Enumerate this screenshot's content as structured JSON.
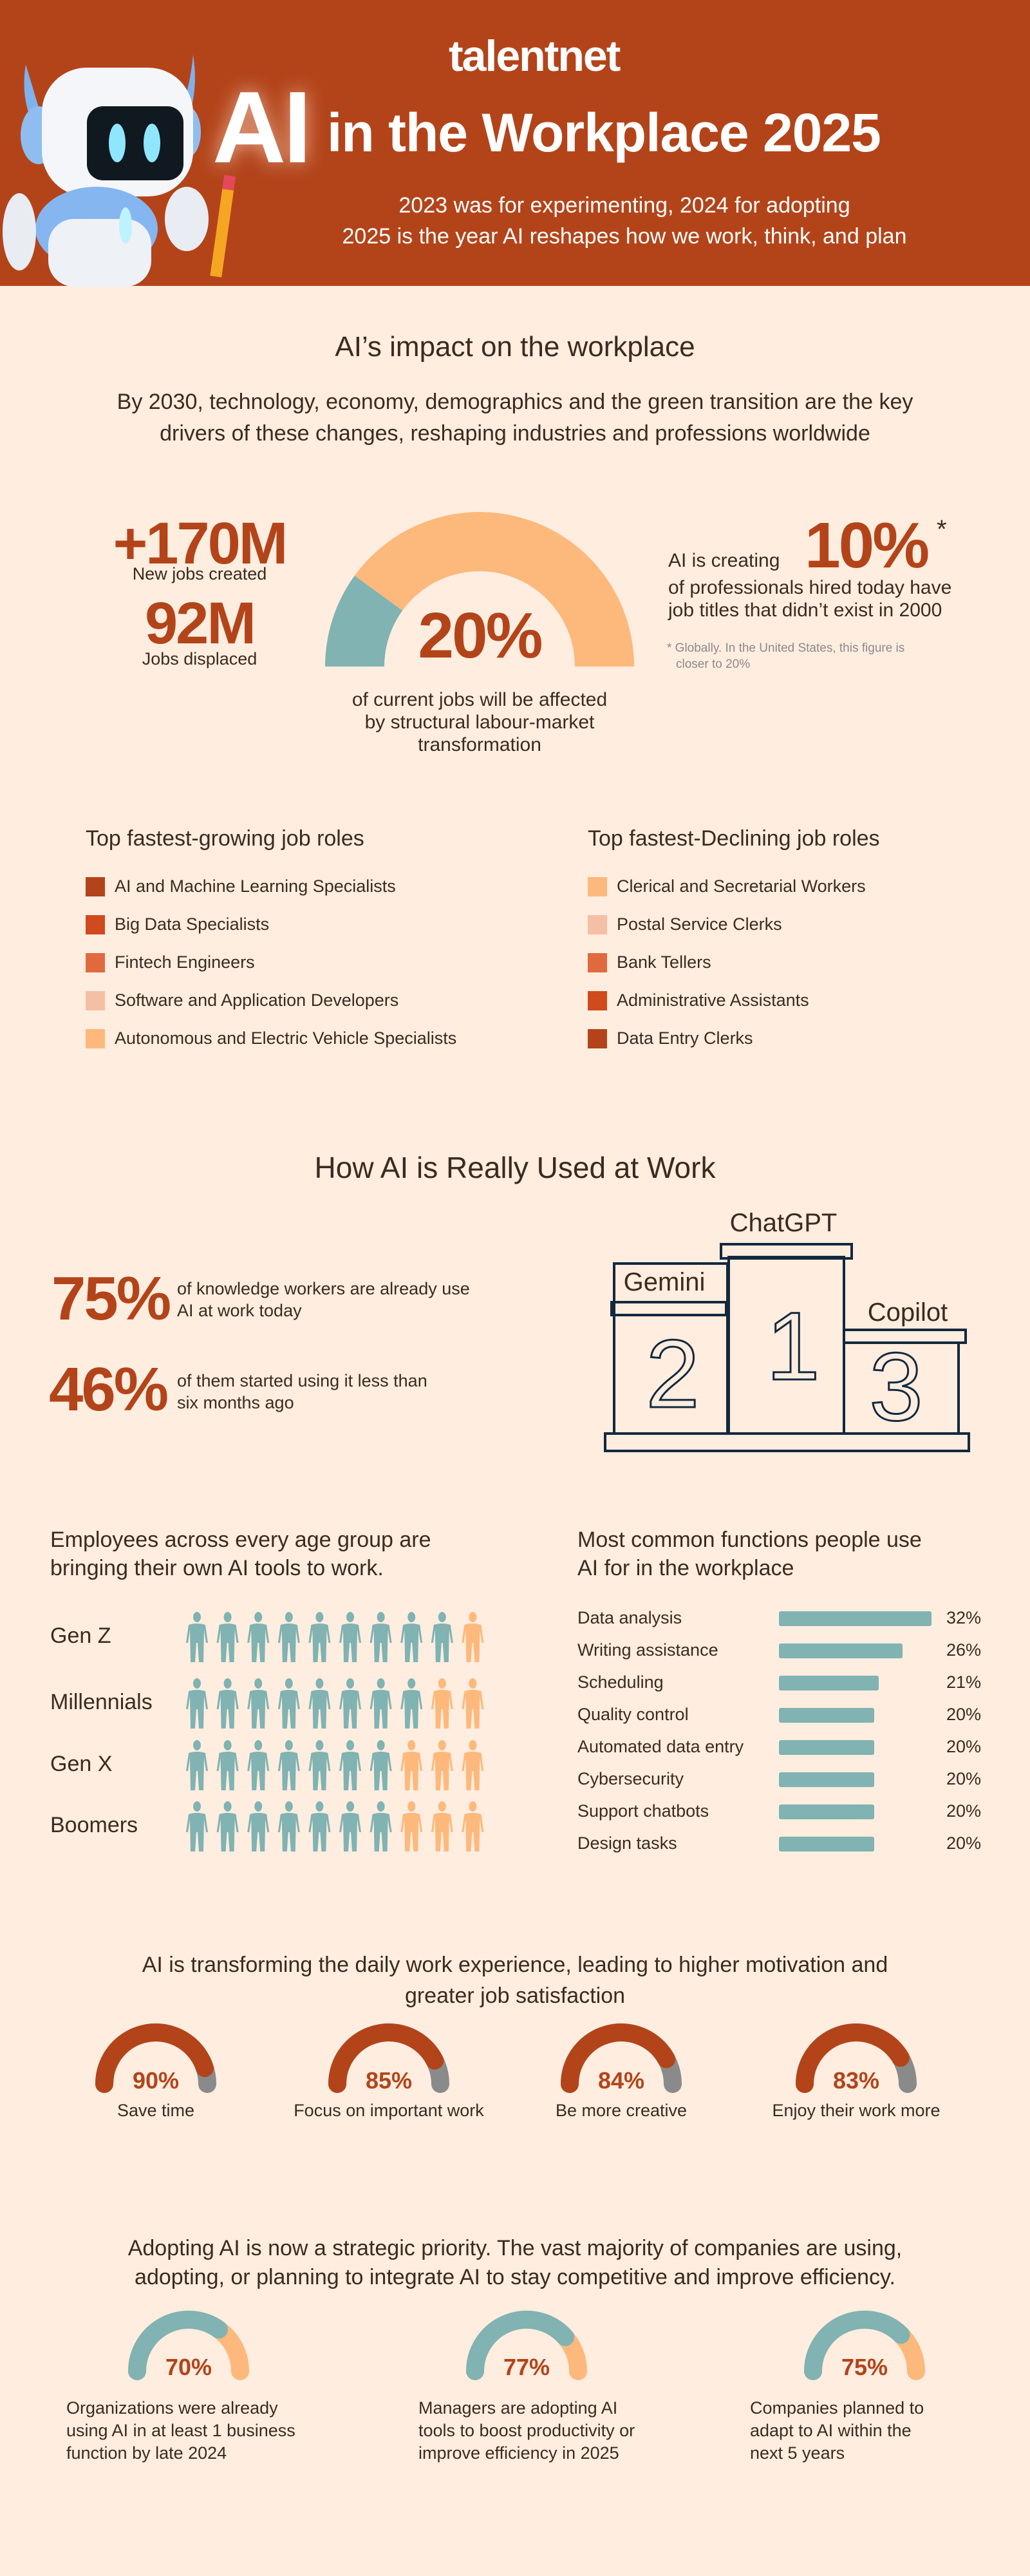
{
  "colors": {
    "header": "#b3441a",
    "background": "#ffede0",
    "accent": "#b3441a",
    "teal": "#80b3b2",
    "peach": "#fdb97b",
    "grey": "#8a8a8a",
    "podium": "#13293d"
  },
  "header": {
    "logo": "talentnet",
    "title_ai": "AI",
    "title_rest": "in the Workplace 2025",
    "subtitle_lines": [
      "2023 was for experimenting, 2024 for adopting",
      "2025 is the year AI reshapes how we work, think, and plan"
    ],
    "robot_icon": "robot-with-pencil"
  },
  "impact": {
    "heading": "AI’s impact on the workplace",
    "intro_lines": [
      "By 2030, technology, economy, demographics and the green transition  are the key",
      "drivers of these changes, reshaping industries and professions worldwide"
    ],
    "new_jobs": {
      "value": "+170M",
      "label": "New jobs created"
    },
    "displaced": {
      "value": "92M",
      "label": "Jobs displaced"
    },
    "affected": {
      "value": "20%",
      "percent": 20,
      "lines": [
        "of current jobs will be affected",
        "by structural labour-market",
        "transformation"
      ]
    },
    "new_titles": {
      "prefix": "AI is creating",
      "value": "10%",
      "asterisk": "*",
      "lines": [
        "of professionals hired today have",
        "job titles that didn’t exist in 2000"
      ],
      "footnote_lines": [
        "* Globally. In the United States, this figure is",
        "closer to 20%"
      ]
    }
  },
  "roles": {
    "growing": {
      "heading": "Top fastest-growing job roles",
      "items": [
        {
          "label": "AI and Machine Learning Specialists",
          "color": "#b3441a"
        },
        {
          "label": "Big Data Specialists",
          "color": "#cf4a1c"
        },
        {
          "label": "Fintech Engineers",
          "color": "#e06a3e"
        },
        {
          "label": "Software and Application Developers",
          "color": "#f5bfa6"
        },
        {
          "label": "Autonomous and Electric Vehicle Specialists",
          "color": "#fdb97b"
        }
      ]
    },
    "declining": {
      "heading": "Top fastest-Declining job roles",
      "items": [
        {
          "label": "Clerical and Secretarial Workers",
          "color": "#fdb97b"
        },
        {
          "label": "Postal Service Clerks",
          "color": "#f5bfa6"
        },
        {
          "label": "Bank Tellers",
          "color": "#e06a3e"
        },
        {
          "label": "Administrative Assistants",
          "color": "#cf4a1c"
        },
        {
          "label": "Data Entry Clerks",
          "color": "#b3441a"
        }
      ]
    }
  },
  "usage": {
    "heading": "How AI is Really Used at Work",
    "stat1": {
      "value": "75%",
      "lines": [
        "of knowledge workers are already use",
        "AI at work today"
      ]
    },
    "stat2": {
      "value": "46%",
      "lines": [
        "of them started using it less than",
        "six months ago"
      ]
    },
    "podium": {
      "first": {
        "name": "ChatGPT",
        "rank": "1"
      },
      "second": {
        "name": "Gemini",
        "rank": "2"
      },
      "third": {
        "name": "Copilot",
        "rank": "3"
      }
    }
  },
  "age_groups": {
    "heading_lines": [
      "Employees across every age group are",
      "bringing their own AI tools to work."
    ],
    "rows": [
      {
        "label": "Gen Z",
        "highlighted": 9,
        "total": 10
      },
      {
        "label": "Millennials",
        "highlighted": 8,
        "total": 10
      },
      {
        "label": "Gen X",
        "highlighted": 7,
        "total": 10
      },
      {
        "label": "Boomers",
        "highlighted": 7,
        "total": 10
      }
    ]
  },
  "chart_data": {
    "type": "bar",
    "title": "Most common functions people use AI for in the workplace",
    "title_lines": [
      "Most common functions people use",
      "AI for in the workplace"
    ],
    "orientation": "horizontal",
    "categories": [
      "Data analysis",
      "Writing assistance",
      "Scheduling",
      "Quality control",
      "Automated data entry",
      "Cybersecurity",
      "Support chatbots",
      "Design tasks"
    ],
    "values": [
      32,
      26,
      21,
      20,
      20,
      20,
      20,
      20
    ],
    "labels": [
      "32%",
      "26%",
      "21%",
      "20%",
      "20%",
      "20%",
      "20%",
      "20%"
    ]
  },
  "satisfaction": {
    "heading_lines": [
      "AI is transforming the daily work experience, leading to higher motivation and",
      "greater job satisfaction"
    ],
    "gauges": [
      {
        "value": "90%",
        "percent": 90,
        "label": "Save time"
      },
      {
        "value": "85%",
        "percent": 85,
        "label": "Focus on important work"
      },
      {
        "value": "84%",
        "percent": 84,
        "label": "Be more creative"
      },
      {
        "value": "83%",
        "percent": 83,
        "label": "Enjoy their work more"
      }
    ]
  },
  "adoption": {
    "heading_lines": [
      "Adopting AI is now a strategic priority. The vast majority of companies are using,",
      "adopting, or planning to integrate AI to stay competitive and improve efficiency."
    ],
    "gauges": [
      {
        "value": "70%",
        "percent": 70,
        "lines": [
          "Organizations were already",
          "using AI in at least 1 business",
          "function by late 2024"
        ]
      },
      {
        "value": "77%",
        "percent": 77,
        "lines": [
          "Managers are adopting AI",
          "tools to boost productivity or",
          "improve efficiency in 2025"
        ]
      },
      {
        "value": "75%",
        "percent": 75,
        "lines": [
          "Companies planned to",
          "adapt to AI within the",
          "next 5 years"
        ]
      }
    ]
  }
}
